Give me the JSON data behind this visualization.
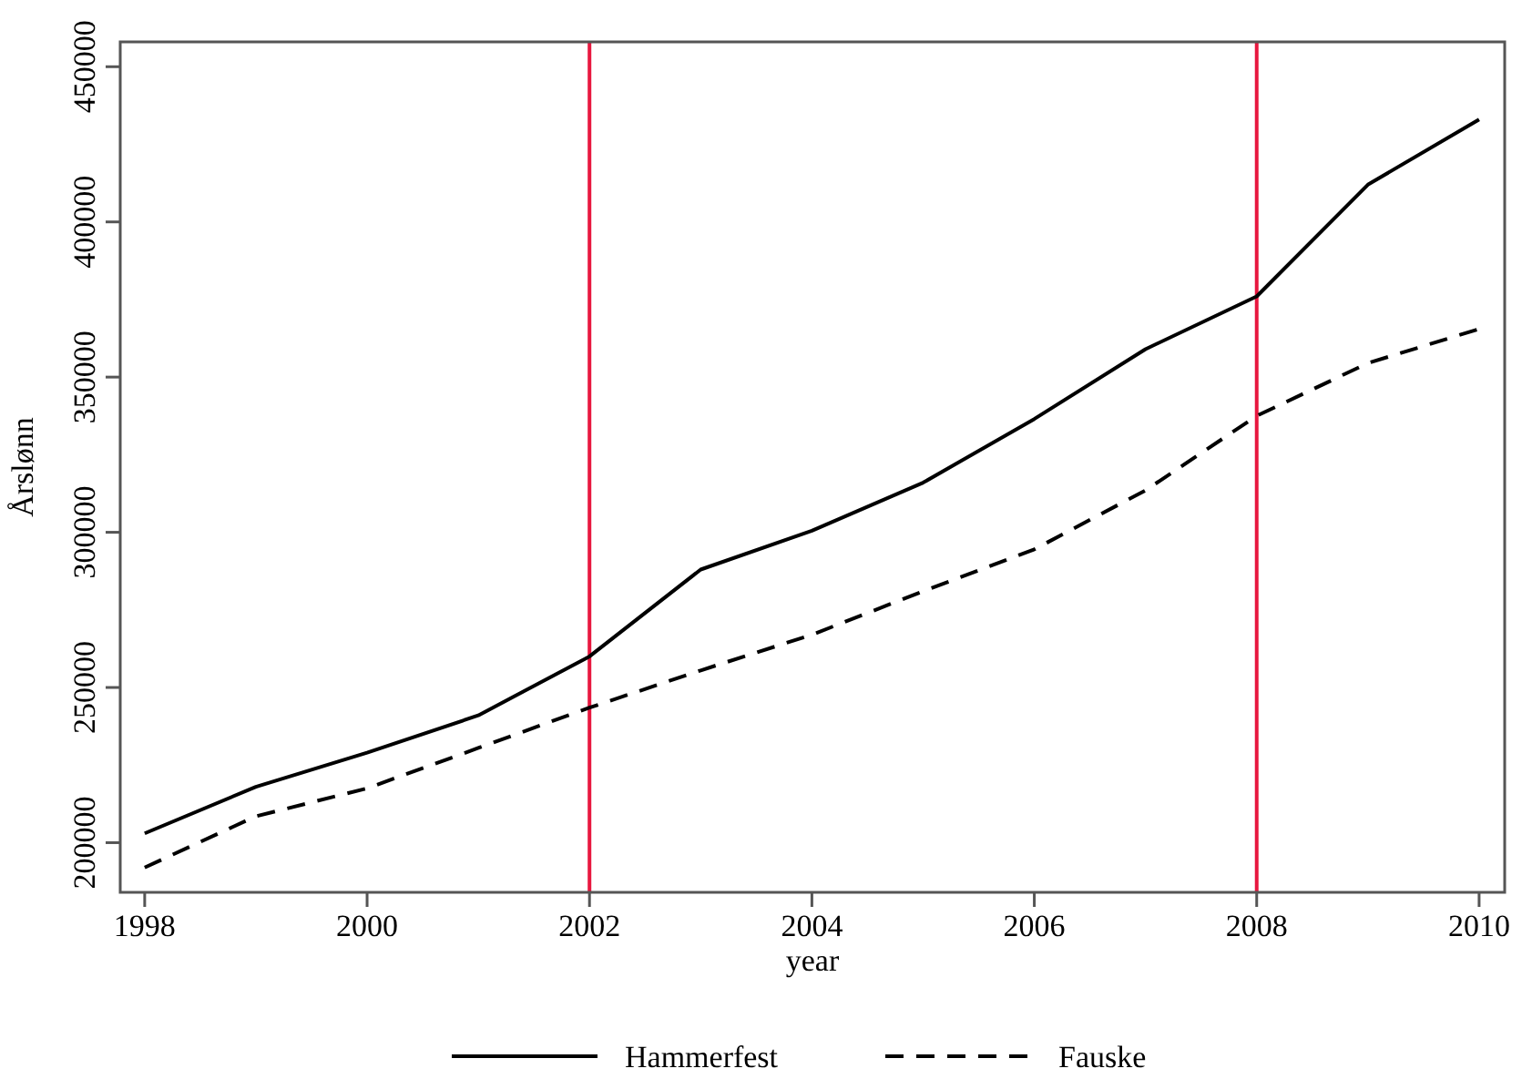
{
  "chart_data": {
    "type": "line",
    "xlabel": "year",
    "ylabel": "Årslønn",
    "x": [
      1998,
      1999,
      2000,
      2001,
      2002,
      2003,
      2004,
      2005,
      2006,
      2007,
      2008,
      2009,
      2010
    ],
    "series": [
      {
        "name": "Hammerfest",
        "color": "#000000",
        "line_style": "solid",
        "values": [
          203000,
          218000,
          229000,
          241000,
          260000,
          288000,
          300500,
          316000,
          336500,
          359000,
          376000,
          412000,
          433000
        ]
      },
      {
        "name": "Fauske",
        "color": "#000000",
        "line_style": "dashed",
        "values": [
          192000,
          208500,
          217500,
          230500,
          243500,
          255500,
          267000,
          281000,
          294500,
          313500,
          337500,
          354500,
          365500
        ]
      }
    ],
    "xlim": [
      1997.78,
      2010.23
    ],
    "xticks": [
      1998,
      2000,
      2002,
      2004,
      2006,
      2008,
      2010
    ],
    "ylim": [
      184000,
      458000
    ],
    "yticks": [
      200000,
      250000,
      300000,
      350000,
      400000,
      450000
    ],
    "ref_lines": [
      {
        "axis": "x",
        "value": 2002,
        "color": "#e8173f"
      },
      {
        "axis": "x",
        "value": 2008,
        "color": "#e8173f"
      }
    ],
    "grid": false,
    "legend": "bottom",
    "marker": "none"
  }
}
